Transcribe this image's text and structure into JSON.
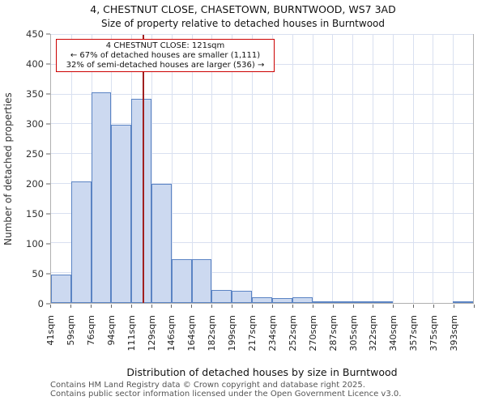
{
  "page": {
    "title_line1": "4, CHESTNUT CLOSE, CHASETOWN, BURNTWOOD, WS7 3AD",
    "title_line2": "Size of property relative to detached houses in Burntwood",
    "footer_line1": "Contains HM Land Registry data © Crown copyright and database right 2025.",
    "footer_line2": "Contains public sector information licensed under the Open Government Licence v3.0."
  },
  "chart_data": {
    "type": "bar",
    "title": "4, CHESTNUT CLOSE, CHASETOWN, BURNTWOOD, WS7 3AD — Size of property relative to detached houses in Burntwood",
    "categories": [
      "41sqm",
      "59sqm",
      "76sqm",
      "94sqm",
      "111sqm",
      "129sqm",
      "146sqm",
      "164sqm",
      "182sqm",
      "199sqm",
      "217sqm",
      "234sqm",
      "252sqm",
      "270sqm",
      "287sqm",
      "305sqm",
      "322sqm",
      "340sqm",
      "357sqm",
      "375sqm",
      "393sqm"
    ],
    "values": [
      47,
      204,
      354,
      299,
      343,
      200,
      74,
      73,
      22,
      20,
      9,
      8,
      10,
      2,
      2,
      1,
      1,
      0,
      0,
      0,
      2
    ],
    "xlabel": "Distribution of detached houses by size in Burntwood",
    "ylabel": "Number of detached properties",
    "ylim": [
      0,
      450
    ],
    "yticks": [
      0,
      50,
      100,
      150,
      200,
      250,
      300,
      350,
      400,
      450
    ],
    "x_range_sqm": [
      41,
      410.6
    ],
    "grid": true,
    "bar_fill": "#ccd9f0",
    "bar_border": "#5b84c4",
    "marker": {
      "value_sqm": 121,
      "color": "#a02020"
    },
    "annotation": {
      "line1": "4 CHESTNUT CLOSE: 121sqm",
      "line2": "← 67% of detached houses are smaller (1,111)",
      "line3": "32% of semi-detached houses are larger (536) →",
      "border_color": "#cc0000"
    },
    "legend": null
  }
}
